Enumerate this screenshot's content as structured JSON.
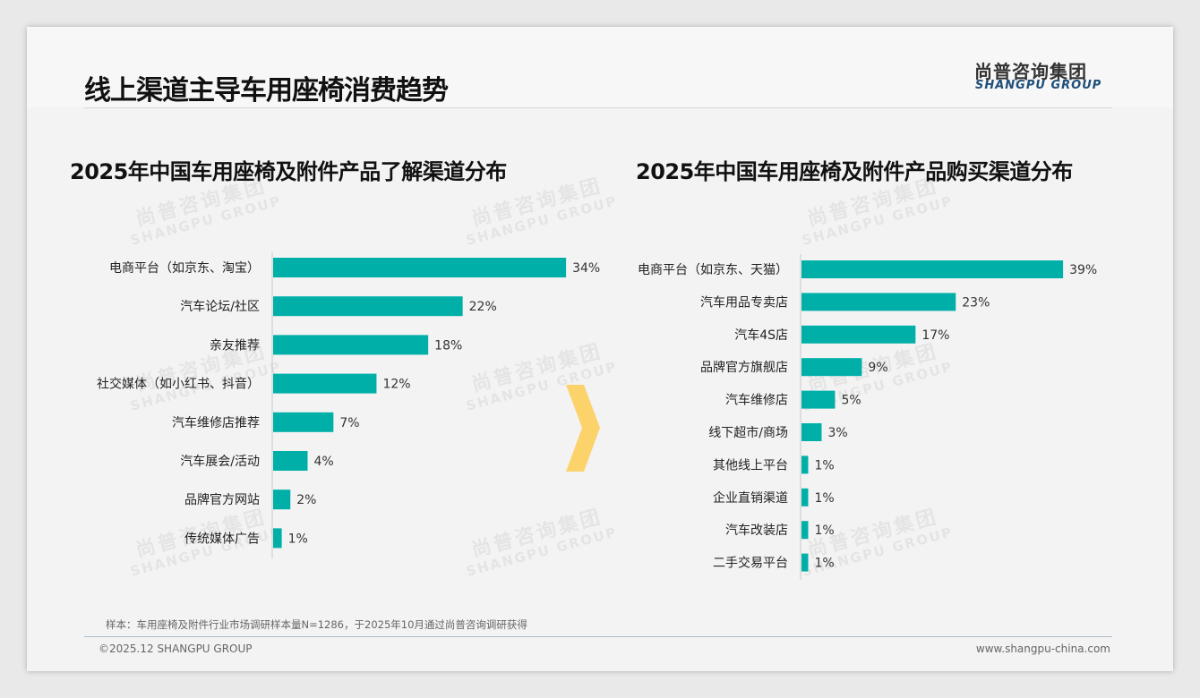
{
  "header": {
    "title": "线上渠道主导车用座椅消费趋势",
    "logo_cn": "尚普咨询集团",
    "logo_en": "SHANGPU GROUP"
  },
  "watermark": {
    "cn": "尚普咨询集团",
    "en": "SHANGPU GROUP"
  },
  "chart_data": [
    {
      "type": "bar",
      "orientation": "horizontal",
      "title": "2025年中国车用座椅及附件产品了解渠道分布",
      "categories": [
        "电商平台（如京东、淘宝）",
        "汽车论坛/社区",
        "亲友推荐",
        "社交媒体（如小红书、抖音）",
        "汽车维修店推荐",
        "汽车展会/活动",
        "品牌官方网站",
        "传统媒体广告"
      ],
      "values": [
        34,
        22,
        18,
        12,
        7,
        4,
        2,
        1
      ],
      "unit": "%",
      "color": "#00b0a8"
    },
    {
      "type": "bar",
      "orientation": "horizontal",
      "title": "2025年中国车用座椅及附件产品购买渠道分布",
      "categories": [
        "电商平台（如京东、天猫）",
        "汽车用品专卖店",
        "汽车4S店",
        "品牌官方旗舰店",
        "汽车维修店",
        "线下超市/商场",
        "其他线上平台",
        "企业直销渠道",
        "汽车改装店",
        "二手交易平台"
      ],
      "values": [
        39,
        23,
        17,
        9,
        5,
        3,
        1,
        1,
        1,
        1
      ],
      "unit": "%",
      "color": "#00b0a8"
    }
  ],
  "footer": {
    "note": "样本：车用座椅及附件行业市场调研样本量N=1286，于2025年10月通过尚普咨询调研获得",
    "copyright": "©2025.12 SHANGPU GROUP",
    "url": "www.shangpu-china.com"
  },
  "colors": {
    "bar": "#00b0a8",
    "arrow": "#fcd26b"
  }
}
